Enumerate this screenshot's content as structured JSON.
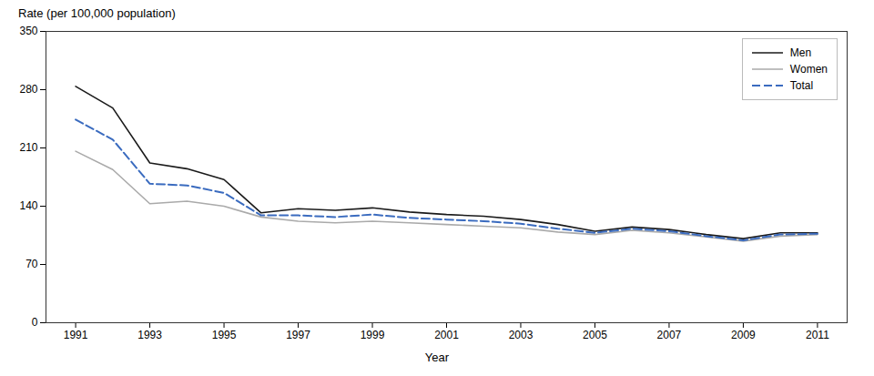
{
  "chart_data": {
    "type": "line",
    "xlabel": "Year",
    "ylabel": "Rate (per 100,000 population)",
    "x": [
      1991,
      1992,
      1993,
      1994,
      1995,
      1996,
      1997,
      1998,
      1999,
      2000,
      2001,
      2002,
      2003,
      2004,
      2005,
      2006,
      2007,
      2008,
      2009,
      2010,
      2011
    ],
    "series": [
      {
        "name": "Men",
        "color": "#1a1a1a",
        "line_style": "solid",
        "values": [
          284,
          258,
          192,
          185,
          172,
          132,
          137,
          135,
          138,
          133,
          130,
          128,
          124,
          118,
          110,
          115,
          112,
          106,
          101,
          108,
          108
        ]
      },
      {
        "name": "Women",
        "color": "#aaaaaa",
        "line_style": "solid",
        "values": [
          206,
          184,
          143,
          146,
          140,
          127,
          122,
          120,
          122,
          120,
          118,
          116,
          114,
          109,
          106,
          111,
          108,
          103,
          98,
          104,
          106
        ]
      },
      {
        "name": "Total",
        "color": "#3a6bbf",
        "line_style": "dashed",
        "values": [
          244,
          220,
          167,
          165,
          156,
          129,
          129,
          127,
          130,
          126,
          124,
          122,
          119,
          113,
          108,
          113,
          110,
          104,
          99,
          106,
          107
        ]
      }
    ],
    "xlim": [
      1990.2,
      2011.8
    ],
    "xticks": [
      1991,
      1993,
      1995,
      1997,
      1999,
      2001,
      2003,
      2005,
      2007,
      2009,
      2011
    ],
    "ylim": [
      0,
      350
    ],
    "yticks": [
      0,
      70,
      140,
      210,
      280,
      350
    ],
    "grid": false,
    "legend": "upper right"
  }
}
